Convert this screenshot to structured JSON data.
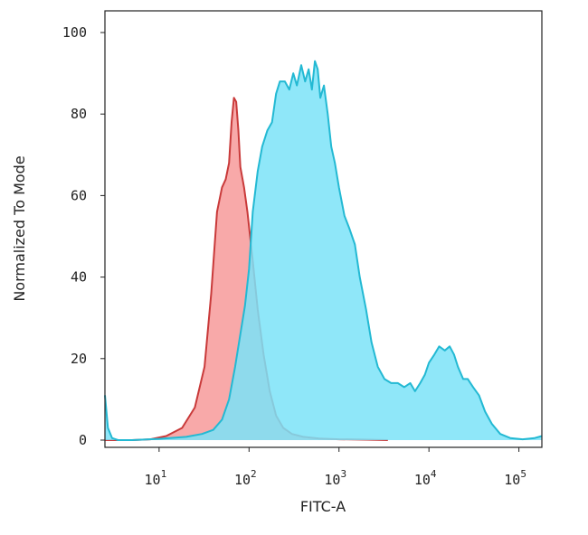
{
  "chart_data": {
    "type": "area",
    "title": "",
    "xlabel": "FITC-A",
    "ylabel": "Normalized To Mode",
    "xscale": "log",
    "xlim": [
      2.5,
      180000
    ],
    "ylim": [
      0,
      105
    ],
    "x_ticks": [
      {
        "value": 10,
        "base": "10",
        "exp": "1"
      },
      {
        "value": 100,
        "base": "10",
        "exp": "2"
      },
      {
        "value": 1000,
        "base": "10",
        "exp": "3"
      },
      {
        "value": 10000,
        "base": "10",
        "exp": "4"
      },
      {
        "value": 100000,
        "base": "10",
        "exp": "5"
      }
    ],
    "y_ticks": [
      {
        "value": 0,
        "label": "0"
      },
      {
        "value": 20,
        "label": "20"
      },
      {
        "value": 40,
        "label": "40"
      },
      {
        "value": 60,
        "label": "60"
      },
      {
        "value": 80,
        "label": "80"
      },
      {
        "value": 100,
        "label": "100"
      }
    ],
    "grid": false,
    "series": [
      {
        "fill": "#F79A9A",
        "stroke": "#C93A3A",
        "opacity": 0.85,
        "x": [
          2.5,
          5,
          8,
          12,
          18,
          25,
          32,
          38,
          44,
          50,
          55,
          60,
          64,
          68,
          72,
          76,
          80,
          88,
          96,
          110,
          125,
          145,
          170,
          200,
          240,
          300,
          400,
          600,
          1000,
          2000,
          3500
        ],
        "y": [
          0,
          0,
          0.2,
          1,
          3,
          8,
          18,
          36,
          56,
          62,
          64,
          68,
          78,
          84,
          83,
          76,
          67,
          62,
          56,
          44,
          32,
          21,
          12,
          6,
          3,
          1.5,
          0.8,
          0.4,
          0.2,
          0.1,
          0
        ]
      },
      {
        "fill": "#7BE3F8",
        "stroke": "#23B9D3",
        "opacity": 0.85,
        "x": [
          2.5,
          2.7,
          3.0,
          3.5,
          5,
          10,
          20,
          30,
          40,
          50,
          60,
          70,
          80,
          90,
          100,
          110,
          125,
          140,
          160,
          180,
          200,
          220,
          250,
          280,
          310,
          340,
          380,
          420,
          460,
          500,
          540,
          580,
          620,
          680,
          750,
          820,
          900,
          1000,
          1150,
          1300,
          1500,
          1700,
          2000,
          2300,
          2700,
          3200,
          3800,
          4500,
          5300,
          6200,
          7000,
          8000,
          9000,
          10000,
          11500,
          13000,
          15000,
          17000,
          19000,
          21000,
          24000,
          27000,
          31000,
          36000,
          42000,
          50000,
          62000,
          80000,
          110000,
          150000,
          180000
        ],
        "y": [
          11,
          3,
          0.5,
          0,
          0,
          0.3,
          0.8,
          1.5,
          2.5,
          5,
          10,
          18,
          26,
          33,
          42,
          56,
          66,
          72,
          76,
          78,
          85,
          88,
          88,
          86,
          90,
          87,
          92,
          88,
          91,
          86,
          93,
          91,
          84,
          87,
          80,
          72,
          68,
          62,
          55,
          52,
          48,
          40,
          32,
          24,
          18,
          15,
          14,
          14,
          13,
          14,
          12,
          14,
          16,
          19,
          21,
          23,
          22,
          23,
          21,
          18,
          15,
          15,
          13,
          11,
          7,
          4,
          1.5,
          0.5,
          0.2,
          0.5,
          1
        ]
      }
    ]
  }
}
